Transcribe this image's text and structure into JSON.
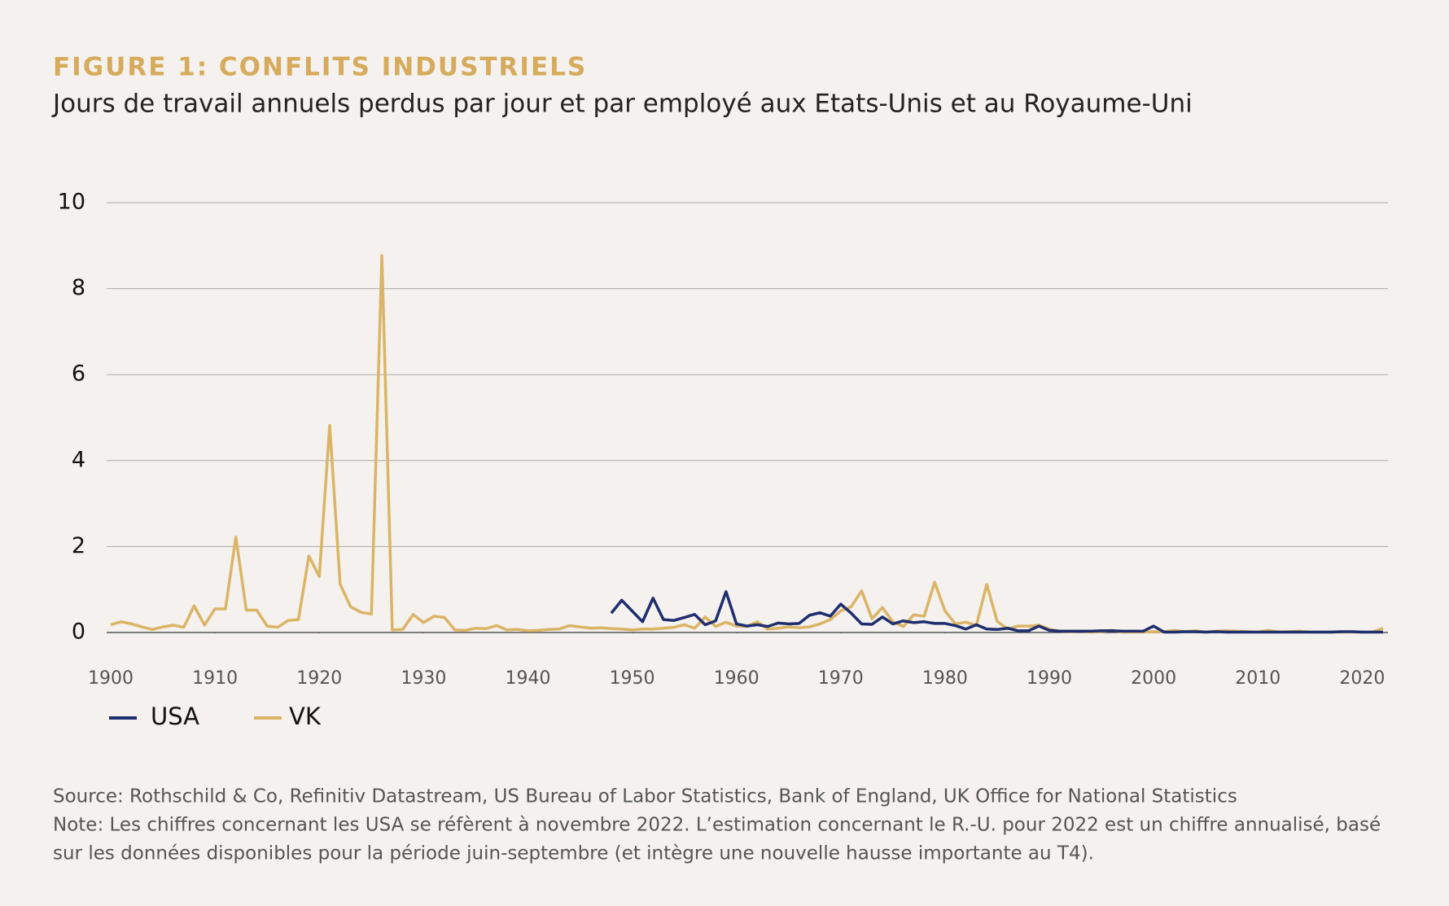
{
  "chart_data": {
    "type": "line",
    "title": "FIGURE 1: CONFLITS INDUSTRIELS",
    "subtitle": "Jours de travail annuels perdus par jour et par employé aux Etats-Unis et au Royaume-Uni",
    "x": [
      1900,
      1901,
      1902,
      1903,
      1904,
      1905,
      1906,
      1907,
      1908,
      1909,
      1910,
      1911,
      1912,
      1913,
      1914,
      1915,
      1916,
      1917,
      1918,
      1919,
      1920,
      1921,
      1922,
      1923,
      1924,
      1925,
      1926,
      1927,
      1928,
      1929,
      1930,
      1931,
      1932,
      1933,
      1934,
      1935,
      1936,
      1937,
      1938,
      1939,
      1940,
      1941,
      1942,
      1943,
      1944,
      1945,
      1946,
      1947,
      1948,
      1949,
      1950,
      1951,
      1952,
      1953,
      1954,
      1955,
      1956,
      1957,
      1958,
      1959,
      1960,
      1961,
      1962,
      1963,
      1964,
      1965,
      1966,
      1967,
      1968,
      1969,
      1970,
      1971,
      1972,
      1973,
      1974,
      1975,
      1976,
      1977,
      1978,
      1979,
      1980,
      1981,
      1982,
      1983,
      1984,
      1985,
      1986,
      1987,
      1988,
      1989,
      1990,
      1991,
      1992,
      1993,
      1994,
      1995,
      1996,
      1997,
      1998,
      1999,
      2000,
      2001,
      2002,
      2003,
      2004,
      2005,
      2006,
      2007,
      2008,
      2009,
      2010,
      2011,
      2012,
      2013,
      2014,
      2015,
      2016,
      2017,
      2018,
      2019,
      2020,
      2021,
      2022
    ],
    "series": [
      {
        "name": "VK",
        "color": "#dbb466",
        "values": [
          0.18,
          0.25,
          0.2,
          0.13,
          0.07,
          0.13,
          0.17,
          0.12,
          0.62,
          0.17,
          0.55,
          0.55,
          2.22,
          0.52,
          0.52,
          0.15,
          0.12,
          0.28,
          0.3,
          1.78,
          1.3,
          4.82,
          1.12,
          0.6,
          0.47,
          0.43,
          8.77,
          0.06,
          0.07,
          0.42,
          0.23,
          0.38,
          0.35,
          0.06,
          0.05,
          0.1,
          0.09,
          0.16,
          0.06,
          0.07,
          0.04,
          0.05,
          0.07,
          0.08,
          0.16,
          0.13,
          0.1,
          0.11,
          0.09,
          0.08,
          0.06,
          0.08,
          0.08,
          0.1,
          0.12,
          0.18,
          0.1,
          0.36,
          0.14,
          0.24,
          0.15,
          0.14,
          0.25,
          0.08,
          0.1,
          0.13,
          0.11,
          0.13,
          0.2,
          0.3,
          0.5,
          0.6,
          0.97,
          0.32,
          0.58,
          0.25,
          0.14,
          0.41,
          0.38,
          1.17,
          0.5,
          0.2,
          0.24,
          0.16,
          1.12,
          0.26,
          0.08,
          0.15,
          0.15,
          0.17,
          0.08,
          0.03,
          0.02,
          0.03,
          0.01,
          0.02,
          0.05,
          0.01,
          0.01,
          0.01,
          0.02,
          0.02,
          0.05,
          0.02,
          0.04,
          0.01,
          0.03,
          0.04,
          0.03,
          0.02,
          0.01,
          0.05,
          0.01,
          0.02,
          0.03,
          0.01,
          0.01,
          0.01,
          0.01,
          0.01,
          0.01,
          0.01,
          0.1
        ]
      },
      {
        "name": "USA",
        "color": "#1f2e6e",
        "values": [
          null,
          null,
          null,
          null,
          null,
          null,
          null,
          null,
          null,
          null,
          null,
          null,
          null,
          null,
          null,
          null,
          null,
          null,
          null,
          null,
          null,
          null,
          null,
          null,
          null,
          null,
          null,
          null,
          null,
          null,
          null,
          null,
          null,
          null,
          null,
          null,
          null,
          null,
          null,
          null,
          null,
          null,
          null,
          null,
          null,
          null,
          null,
          null,
          0.45,
          0.75,
          0.5,
          0.25,
          0.8,
          0.3,
          0.28,
          0.35,
          0.42,
          0.18,
          0.27,
          0.95,
          0.2,
          0.15,
          0.18,
          0.14,
          0.22,
          0.2,
          0.21,
          0.4,
          0.46,
          0.38,
          0.66,
          0.45,
          0.2,
          0.19,
          0.36,
          0.2,
          0.27,
          0.23,
          0.25,
          0.21,
          0.21,
          0.16,
          0.08,
          0.18,
          0.08,
          0.07,
          0.1,
          0.04,
          0.04,
          0.15,
          0.05,
          0.03,
          0.03,
          0.03,
          0.03,
          0.04,
          0.04,
          0.03,
          0.03,
          0.03,
          0.15,
          0.01,
          0.01,
          0.02,
          0.02,
          0.01,
          0.02,
          0.01,
          0.01,
          0.01,
          0.01,
          0.01,
          0.01,
          0.01,
          0.01,
          0.01,
          0.01,
          0.01,
          0.02,
          0.02,
          0.01,
          0.01,
          0.01
        ]
      }
    ],
    "legend_order": [
      "USA",
      "VK"
    ],
    "xlim": [
      1900,
      2022
    ],
    "xticks": [
      1900,
      1910,
      1920,
      1930,
      1940,
      1950,
      1960,
      1970,
      1980,
      1990,
      2000,
      2010,
      2020
    ],
    "ylim": [
      0,
      10
    ],
    "yticks": [
      0,
      2,
      4,
      6,
      8,
      10
    ],
    "grid": true,
    "source": "Source: Rothschild & Co, Refinitiv Datastream, US Bureau of Labor Statistics, Bank of England, UK Office for National Statistics",
    "note": [
      "Note: Les chiffres concernant les USA se réfèrent à novembre 2022. L’estimation concernant le R.-U. pour 2022 est un chiffre annualisé, basé",
      "sur les données disponibles pour la période juin-septembre (et intègre une nouvelle hausse importante au T4)."
    ]
  }
}
